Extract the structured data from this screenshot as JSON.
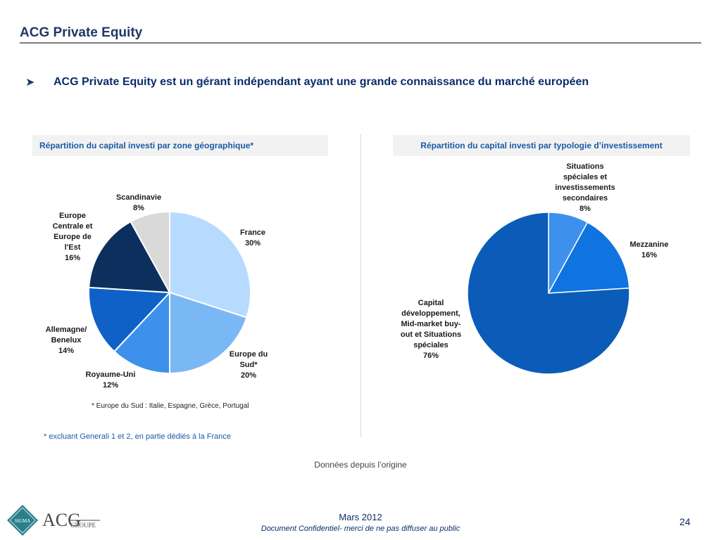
{
  "header": {
    "title": "ACG Private Equity",
    "bullet": "ACG Private Equity est un gérant indépendant ayant une grande connaissance du marché européen"
  },
  "left_chart": {
    "header": "Répartition du capital investi par zone géographique*",
    "footnote": "* Europe du Sud : Italie, Espagne, Grèce, Portugal",
    "labels": [
      "France\n30%",
      "Europe du\nSud*\n20%",
      "Royaume-Uni\n12%",
      "Allemagne/\nBenelux\n14%",
      "Europe\nCentrale et\nEurope de\nl'Est\n16%",
      "Scandinavie\n8%"
    ]
  },
  "right_chart": {
    "header": "Répartition du capital investi par typologie d’investissement",
    "labels": [
      "Situations\nspéciales et\ninvestissements\nsecondaires\n8%",
      "Mezzanine\n16%",
      "Capital\ndéveloppement,\nMid-market buy-\nout et Situations\nspéciales\n76%"
    ]
  },
  "footer": {
    "note": "* excluant Generali 1 et 2, en partie dédiés à la France",
    "since": "Données depuis l’origine",
    "date": "Mars 2012",
    "confidential": "Document Confidentiel- merci de ne pas diffuser au public",
    "page": "24",
    "logo_seal": "SIGMA",
    "logo_text_1": "ACG",
    "logo_text_2": "GROUPE"
  },
  "chart_data": [
    {
      "type": "pie",
      "title": "Répartition du capital investi par zone géographique*",
      "categories": [
        "France",
        "Europe du Sud*",
        "Royaume-Uni",
        "Allemagne/ Benelux",
        "Europe Centrale et Europe de l'Est",
        "Scandinavie"
      ],
      "values": [
        30,
        20,
        12,
        14,
        16,
        8
      ],
      "colors": [
        "#b7dbff",
        "#7ab8f5",
        "#3d91ec",
        "#0f61c7",
        "#0d2f5e",
        "#d9d9d9"
      ],
      "unit": "%"
    },
    {
      "type": "pie",
      "title": "Répartition du capital investi par typologie d’investissement",
      "categories": [
        "Situations spéciales et investissements secondaires",
        "Mezzanine",
        "Capital développement, Mid-market buy-out et Situations spéciales"
      ],
      "values": [
        8,
        16,
        76
      ],
      "colors": [
        "#3d91ec",
        "#0f74e0",
        "#0a5cb8"
      ],
      "unit": "%"
    }
  ]
}
